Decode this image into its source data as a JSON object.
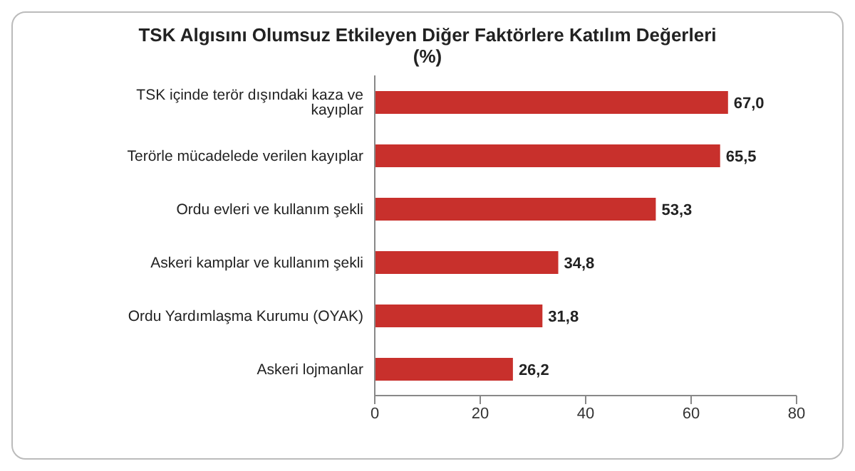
{
  "chart_data": {
    "type": "bar",
    "orientation": "horizontal",
    "title": "TSK Algısını Olumsuz Etkileyen Diğer Faktörlere Katılım Değerleri",
    "subtitle": "(%)",
    "categories": [
      "TSK içinde terör dışındaki kaza ve kayıplar",
      "Terörle mücadelede verilen kayıplar",
      "Ordu evleri ve kullanım şekli",
      "Askeri kamplar ve kullanım şekli",
      "Ordu Yardımlaşma Kurumu (OYAK)",
      "Askeri lojmanlar"
    ],
    "values": [
      67.0,
      65.5,
      53.3,
      34.8,
      31.8,
      26.2
    ],
    "value_labels": [
      "67,0",
      "65,5",
      "53,3",
      "34,8",
      "31,8",
      "26,2"
    ],
    "color": "#c8302c",
    "xlim": [
      0,
      80
    ],
    "xticks": [
      0,
      20,
      40,
      60,
      80
    ],
    "grid": false
  }
}
